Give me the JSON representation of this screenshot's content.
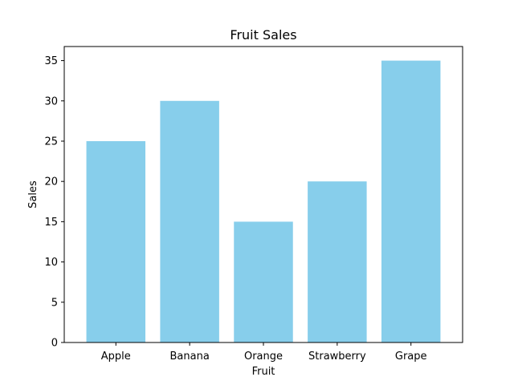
{
  "chart_data": {
    "type": "bar",
    "title": "Fruit Sales",
    "xlabel": "Fruit",
    "ylabel": "Sales",
    "categories": [
      "Apple",
      "Banana",
      "Orange",
      "Strawberry",
      "Grape"
    ],
    "values": [
      25,
      30,
      15,
      20,
      35
    ],
    "ylim": [
      0,
      36.75
    ],
    "yticks": [
      0,
      5,
      10,
      15,
      20,
      25,
      30,
      35
    ],
    "grid": false,
    "legend": "none",
    "bar_color": "#87ceeb"
  }
}
